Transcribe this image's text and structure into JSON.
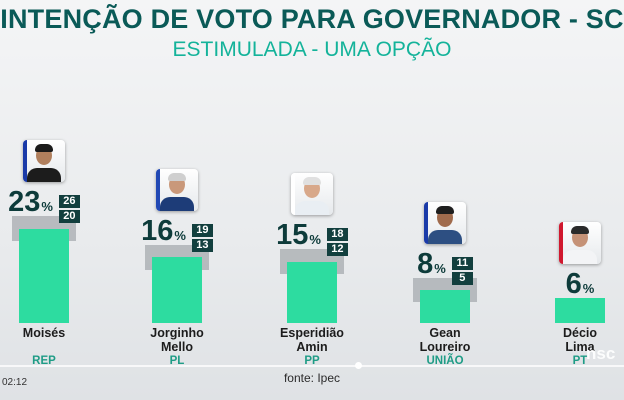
{
  "title": "INTENÇÃO DE VOTO PARA GOVERNADOR - SC",
  "subtitle": "ESTIMULADA - UMA OPÇÃO",
  "source": "fonte: Ipec",
  "player": {
    "time": "02:12",
    "logo_text": "nsc"
  },
  "colors": {
    "title": "#0a5a57",
    "subtitle": "#14b39a",
    "bar": "#2ddca0",
    "range": "#9a9ea2",
    "label_box": "#123f3e"
  },
  "chart_data": {
    "type": "bar",
    "title": "INTENÇÃO DE VOTO PARA GOVERNADOR - SC",
    "subtitle": "ESTIMULADA - UMA OPÇÃO",
    "categories": [
      "Moisés",
      "Jorginho Mello",
      "Esperidião Amin",
      "Gean Loureiro",
      "Décio Lima"
    ],
    "name_lines": [
      [
        "Moisés"
      ],
      [
        "Jorginho",
        "Mello"
      ],
      [
        "Esperidião",
        "Amin"
      ],
      [
        "Gean",
        "Loureiro"
      ],
      [
        "Décio",
        "Lima"
      ]
    ],
    "parties": [
      "REP",
      "PL",
      "PP",
      "UNIÃO",
      "PT"
    ],
    "values": [
      23,
      16,
      15,
      8,
      6
    ],
    "upper": [
      26,
      19,
      18,
      11,
      null
    ],
    "lower": [
      20,
      13,
      12,
      5,
      null
    ],
    "unit": "%",
    "grid": false,
    "legend": "none"
  }
}
